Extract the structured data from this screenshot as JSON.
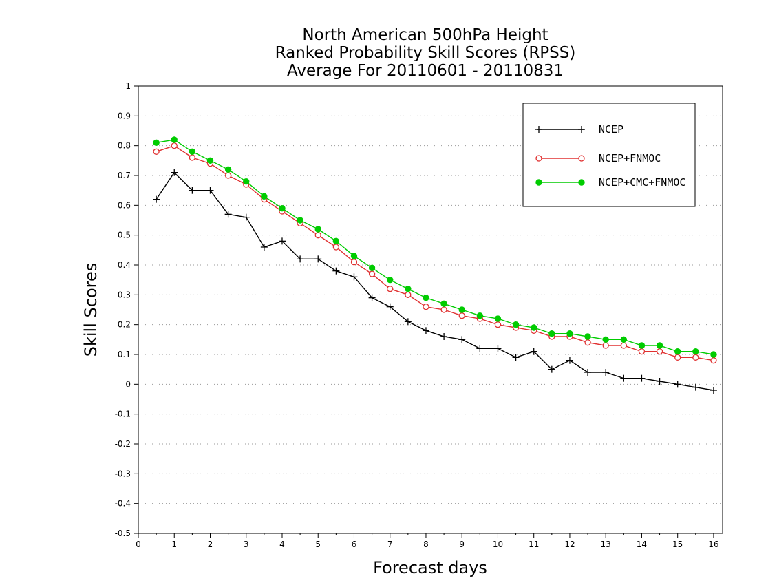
{
  "chart_data": {
    "type": "line",
    "title_lines": [
      "North American 500hPa Height",
      "Ranked Probability Skill Scores (RPSS)",
      "Average For 20110601 - 20110831"
    ],
    "xlabel": "Forecast days",
    "ylabel": "Skill Scores",
    "xlim": [
      0,
      16.25
    ],
    "ylim": [
      -0.5,
      1
    ],
    "x_ticks": [
      "0",
      "1",
      "2",
      "3",
      "4",
      "5",
      "6",
      "7",
      "8",
      "9",
      "10",
      "11",
      "12",
      "13",
      "14",
      "15",
      "16"
    ],
    "y_ticks": [
      "1",
      "0.9",
      "0.8",
      "0.7",
      "0.6",
      "0.5",
      "0.4",
      "0.3",
      "0.2",
      "0.1",
      "0",
      "-0.1",
      "-0.2",
      "-0.3",
      "-0.4",
      "-0.5"
    ],
    "grid": "dotted horizontal",
    "legend_position": "top-right",
    "x": [
      0.5,
      1,
      1.5,
      2,
      2.5,
      3,
      3.5,
      4,
      4.5,
      5,
      5.5,
      6,
      6.5,
      7,
      7.5,
      8,
      8.5,
      9,
      9.5,
      10,
      10.5,
      11,
      11.5,
      12,
      12.5,
      13,
      13.5,
      14,
      14.5,
      15,
      15.5,
      16
    ],
    "series": [
      {
        "name": "NCEP",
        "color": "#000000",
        "marker": "plus",
        "values": [
          0.62,
          0.71,
          0.65,
          0.65,
          0.57,
          0.56,
          0.46,
          0.48,
          0.42,
          0.42,
          0.38,
          0.36,
          0.29,
          0.26,
          0.21,
          0.18,
          0.16,
          0.15,
          0.12,
          0.12,
          0.09,
          0.11,
          0.05,
          0.08,
          0.04,
          0.04,
          0.02,
          0.02,
          0.01,
          0.0,
          -0.01,
          -0.02
        ]
      },
      {
        "name": "NCEP+FNMOC",
        "color": "#e03030",
        "marker": "open-circle",
        "values": [
          0.78,
          0.8,
          0.76,
          0.74,
          0.7,
          0.67,
          0.62,
          0.58,
          0.54,
          0.5,
          0.46,
          0.41,
          0.37,
          0.32,
          0.3,
          0.26,
          0.25,
          0.23,
          0.22,
          0.2,
          0.19,
          0.18,
          0.16,
          0.16,
          0.14,
          0.13,
          0.13,
          0.11,
          0.11,
          0.09,
          0.09,
          0.08
        ]
      },
      {
        "name": "NCEP+CMC+FNMOC",
        "color": "#00cc00",
        "marker": "filled-circle",
        "values": [
          0.81,
          0.82,
          0.78,
          0.75,
          0.72,
          0.68,
          0.63,
          0.59,
          0.55,
          0.52,
          0.48,
          0.43,
          0.39,
          0.35,
          0.32,
          0.29,
          0.27,
          0.25,
          0.23,
          0.22,
          0.2,
          0.19,
          0.17,
          0.17,
          0.16,
          0.15,
          0.15,
          0.13,
          0.13,
          0.11,
          0.11,
          0.1
        ]
      }
    ]
  }
}
